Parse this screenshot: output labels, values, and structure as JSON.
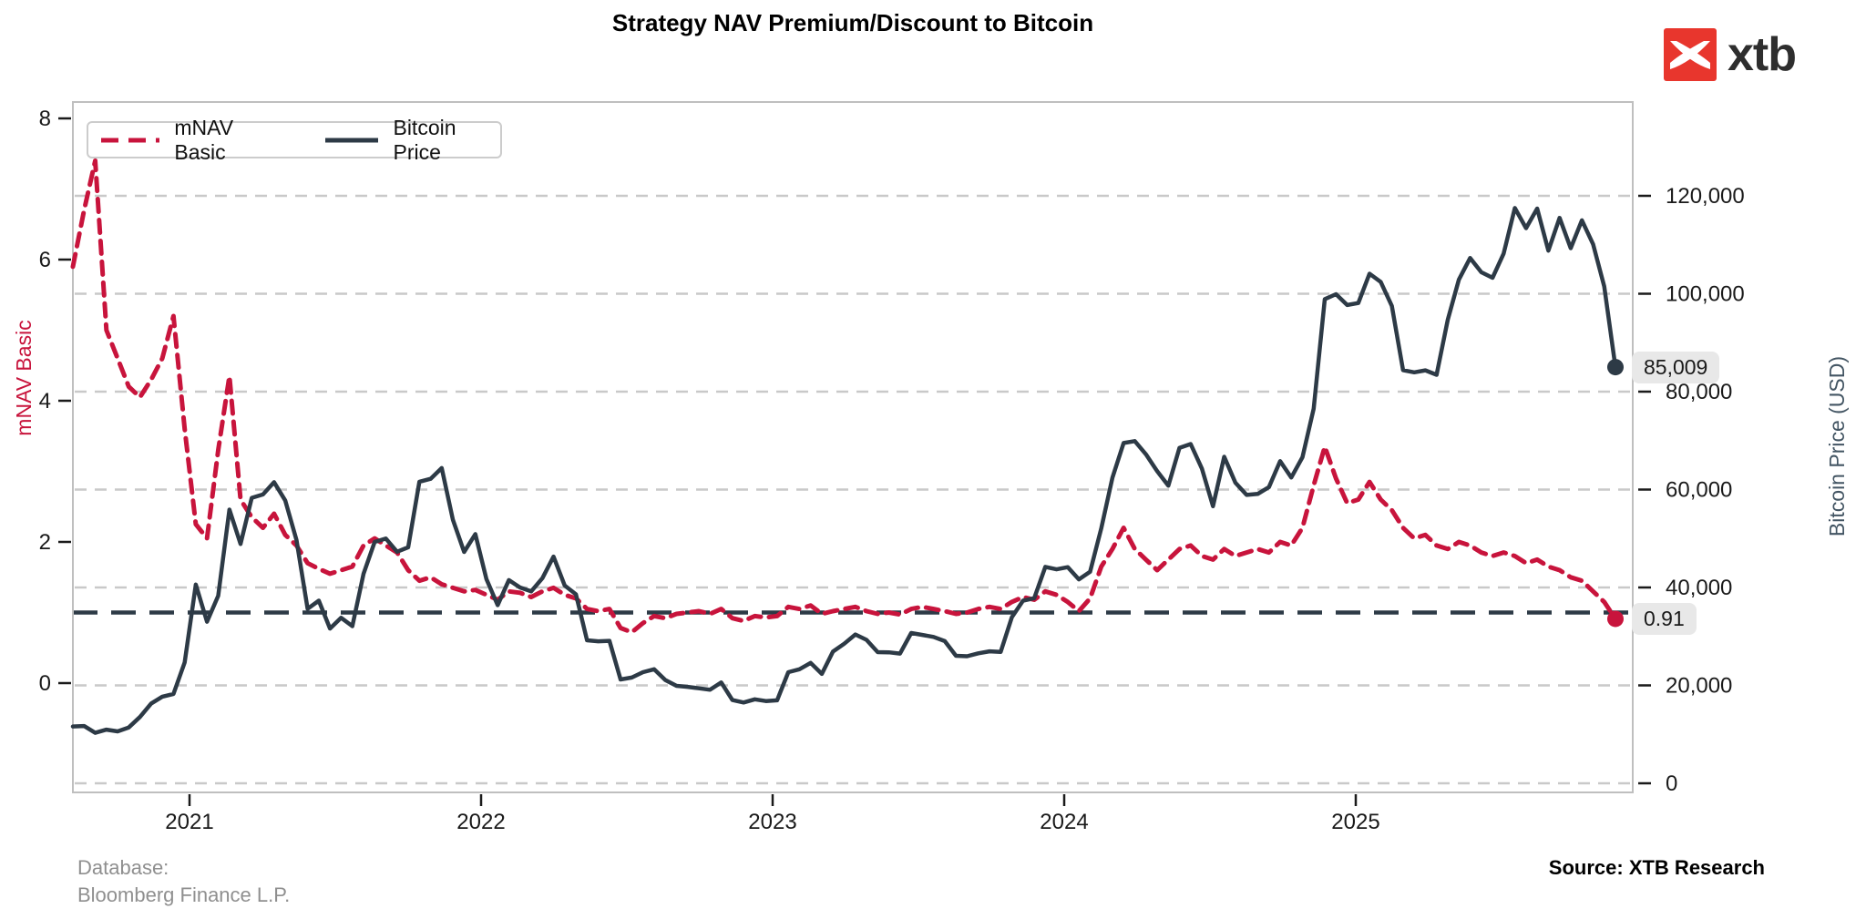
{
  "title": "Strategy NAV Premium/Discount to Bitcoin",
  "logo": {
    "text": "xtb"
  },
  "legend": {
    "items": [
      {
        "label": "mNAV Basic",
        "color": "#c8143c",
        "style": "dashed"
      },
      {
        "label": "Bitcoin Price",
        "color": "#2d3a46",
        "style": "solid"
      }
    ]
  },
  "axes": {
    "left": {
      "label": "mNAV Basic",
      "color": "#c8143c",
      "ticks": [
        "8",
        "6",
        "4",
        "2",
        "0"
      ],
      "values": [
        8,
        6,
        4,
        2,
        0
      ]
    },
    "right": {
      "label": "Bitcoin Price (USD)",
      "color": "#435563",
      "ticks": [
        "120,000",
        "100,000",
        "80,000",
        "60,000",
        "40,000",
        "20,000",
        "0"
      ],
      "values": [
        120000,
        100000,
        80000,
        60000,
        40000,
        20000,
        0
      ]
    },
    "x": {
      "ticks": [
        "2021",
        "2022",
        "2023",
        "2024",
        "2025"
      ],
      "values": [
        2021,
        2022,
        2023,
        2024,
        2025
      ]
    }
  },
  "annotations": {
    "btc_end": "85,009",
    "mnav_end": "0.91"
  },
  "footer": {
    "database_line1": "Database:",
    "database_line2": "Bloomberg Finance L.P.",
    "source": "Source: XTB Research"
  },
  "colors": {
    "mnav": "#c8143c",
    "btc": "#2d3a46",
    "grid": "#c9c9c9",
    "spine": "#bfbfbf",
    "tick_text": "#1a1a1a",
    "annotation_bg": "#e8e8e8",
    "logo_red": "#e8362d"
  },
  "chart_data": {
    "type": "line",
    "title": "Strategy NAV Premium/Discount to Bitcoin",
    "x_start": 2020.6,
    "x_step": 0.038345,
    "x_range": [
      2020.6,
      2025.892
    ],
    "left_axis": {
      "label": "mNAV Basic",
      "range_at_plot_edges": [
        -1.55,
        8.23
      ],
      "ticks": [
        0,
        2,
        4,
        6,
        8
      ]
    },
    "right_axis": {
      "label": "Bitcoin Price (USD)",
      "range_at_plot_edges": [
        -1860,
        139070
      ],
      "ticks": [
        0,
        20000,
        40000,
        60000,
        80000,
        100000,
        120000
      ]
    },
    "grid": "horizontal-dashed-at-right-axis-ticks",
    "legend_position": "upper-left",
    "reference_line_mnav": 1,
    "series": [
      {
        "name": "mNAV Basic",
        "axis": "left",
        "dash": true,
        "color": "#c8143c",
        "end_label": "0.91",
        "values": [
          5.9,
          6.7,
          7.4,
          5.0,
          4.6,
          4.2,
          4.05,
          4.3,
          4.6,
          5.2,
          3.6,
          2.25,
          2.05,
          3.3,
          4.35,
          2.6,
          2.35,
          2.2,
          2.4,
          2.1,
          1.95,
          1.7,
          1.62,
          1.55,
          1.6,
          1.65,
          1.95,
          2.05,
          1.95,
          1.85,
          1.6,
          1.45,
          1.5,
          1.4,
          1.35,
          1.3,
          1.32,
          1.25,
          1.18,
          1.3,
          1.28,
          1.22,
          1.3,
          1.35,
          1.25,
          1.2,
          1.05,
          1.02,
          1.05,
          0.78,
          0.72,
          0.85,
          0.95,
          0.92,
          0.98,
          1.0,
          1.02,
          0.98,
          1.05,
          0.92,
          0.88,
          0.95,
          0.93,
          0.95,
          1.08,
          1.05,
          1.1,
          0.98,
          1.02,
          1.05,
          1.08,
          1.02,
          0.98,
          1.0,
          0.97,
          1.05,
          1.08,
          1.05,
          1.02,
          0.98,
          1.0,
          1.05,
          1.08,
          1.05,
          1.15,
          1.22,
          1.18,
          1.3,
          1.25,
          1.15,
          1.02,
          1.2,
          1.65,
          1.9,
          2.2,
          1.9,
          1.75,
          1.6,
          1.75,
          1.9,
          1.95,
          1.8,
          1.75,
          1.9,
          1.8,
          1.85,
          1.9,
          1.85,
          2.0,
          1.95,
          2.2,
          2.8,
          3.35,
          2.9,
          2.55,
          2.6,
          2.85,
          2.6,
          2.45,
          2.2,
          2.05,
          2.1,
          1.95,
          1.9,
          2.0,
          1.95,
          1.85,
          1.8,
          1.85,
          1.8,
          1.7,
          1.75,
          1.65,
          1.6,
          1.5,
          1.45,
          1.3,
          1.15,
          0.91
        ]
      },
      {
        "name": "Bitcoin Price",
        "axis": "right",
        "dash": false,
        "color": "#2d3a46",
        "end_label": "85,009",
        "values": [
          11600,
          11700,
          10300,
          10950,
          10600,
          11400,
          13550,
          16300,
          17700,
          18250,
          24700,
          40600,
          33000,
          38300,
          55900,
          48900,
          58300,
          59000,
          61500,
          57750,
          49700,
          35650,
          37300,
          31600,
          33800,
          32100,
          42800,
          49300,
          50000,
          47300,
          48200,
          61600,
          62200,
          64400,
          53800,
          47250,
          50900,
          41700,
          36400,
          41500,
          40000,
          39200,
          41900,
          46300,
          40400,
          38600,
          29200,
          29000,
          29100,
          21200,
          21600,
          22700,
          23300,
          21100,
          19900,
          19700,
          19400,
          19100,
          20600,
          17000,
          16500,
          17150,
          16800,
          16950,
          22700,
          23300,
          24600,
          22350,
          26900,
          28500,
          30400,
          29300,
          26800,
          26750,
          26500,
          30700,
          30300,
          29900,
          29050,
          26050,
          25950,
          26550,
          26950,
          26850,
          33900,
          37300,
          37800,
          44200,
          43700,
          44150,
          41650,
          43200,
          52100,
          62400,
          69500,
          69900,
          67200,
          63750,
          60800,
          68500,
          69300,
          64300,
          56600,
          66700,
          61400,
          58900,
          59100,
          60500,
          65800,
          62450,
          66600,
          76500,
          98900,
          99900,
          97700,
          98100,
          104100,
          102400,
          97500,
          84400,
          83950,
          84350,
          83450,
          94700,
          102900,
          107300,
          104400,
          103250,
          108200,
          117500,
          113400,
          117400,
          108800,
          115500,
          109300,
          115000,
          110100,
          101500,
          85009
        ]
      }
    ]
  }
}
